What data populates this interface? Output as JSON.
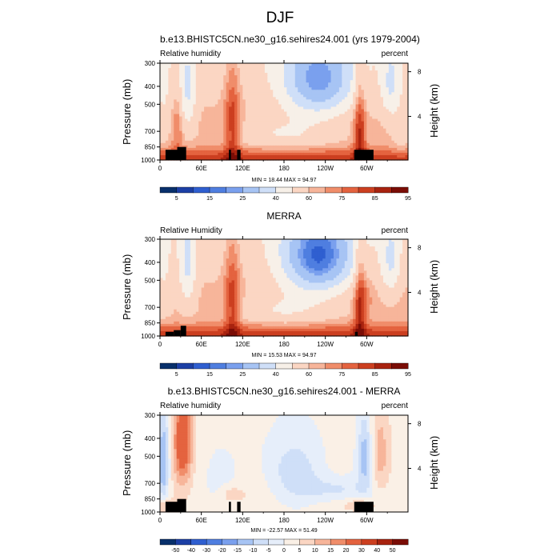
{
  "main_title": "DJF",
  "panels": [
    {
      "title": "b.e13.BHISTC5CN.ne30_g16.sehires24.001 (yrs 1979-2004)",
      "left_label": "Relative humidity",
      "right_label": "percent",
      "minmax": "MIN = 18.44  MAX = 94.97",
      "colorbar_labels": [
        "5",
        "15",
        "25",
        "40",
        "60",
        "75",
        "85",
        "95"
      ],
      "kind": "model"
    },
    {
      "title": "MERRA",
      "left_label": "Relative Humidity",
      "right_label": "percent",
      "minmax": "MIN = 15.53  MAX = 94.97",
      "colorbar_labels": [
        "5",
        "15",
        "25",
        "40",
        "60",
        "75",
        "85",
        "95"
      ],
      "kind": "obs"
    },
    {
      "title": "b.e13.BHISTC5CN.ne30_g16.sehires24.001 - MERRA",
      "left_label": "Relative humidity",
      "right_label": "percent",
      "minmax": "MIN = -22.57  MAX = 51.49",
      "colorbar_labels": [
        "-50",
        "-40",
        "-30",
        "-20",
        "-15",
        "-10",
        "-5",
        "0",
        "5",
        "10",
        "15",
        "20",
        "30",
        "40",
        "50"
      ],
      "kind": "diff"
    }
  ],
  "axes": {
    "ylabel": "Pressure (mb)",
    "ylabel_right": "Height (km)",
    "y_ticks": [
      "300",
      "400",
      "500",
      "700",
      "850",
      "1000"
    ],
    "y_right_ticks": [
      "8",
      "4"
    ],
    "x_ticks": [
      "0",
      "60E",
      "120E",
      "180",
      "120W",
      "60W"
    ]
  },
  "colors": {
    "abs_scale": [
      "#08306b",
      "#1c3fa5",
      "#2f5fd0",
      "#4f7ee0",
      "#7aa0ee",
      "#a7c4f4",
      "#cfdff8",
      "#f7f0e8",
      "#fbd6c3",
      "#f7b59a",
      "#f08d6a",
      "#e4633f",
      "#cc3f20",
      "#a8230f",
      "#7a0d06"
    ],
    "diff_scale": [
      "#08306b",
      "#1c3fa5",
      "#2f5fd0",
      "#4f7ee0",
      "#7aa0ee",
      "#a7c4f4",
      "#cfdff8",
      "#e6eefa",
      "#faf0e6",
      "#fbd6c3",
      "#f7b59a",
      "#f08d6a",
      "#e4633f",
      "#cc3f20",
      "#a8230f",
      "#7a0d06"
    ],
    "terrain": "#000000"
  },
  "chart_data": [
    {
      "type": "heatmap",
      "title": "b.e13.BHISTC5CN.ne30_g16.sehires24.001 (yrs 1979-2004)",
      "ylabel": "Pressure (mb)",
      "ylabel_right": "Height (km)",
      "x_range": [
        0,
        360
      ],
      "y_range_mb": [
        300,
        1000
      ],
      "y_log_scale": true,
      "levels": [
        5,
        10,
        15,
        20,
        25,
        30,
        40,
        50,
        60,
        70,
        75,
        80,
        85,
        90,
        95
      ],
      "min": 18.44,
      "max": 94.97,
      "units": "percent",
      "terrain_blocks_lon": [
        [
          8,
          25,
          880
        ],
        [
          25,
          38,
          850
        ],
        [
          100,
          103,
          880
        ],
        [
          112,
          117,
          880
        ],
        [
          282,
          310,
          880
        ]
      ]
    },
    {
      "type": "heatmap",
      "title": "MERRA",
      "ylabel": "Pressure (mb)",
      "ylabel_right": "Height (km)",
      "x_range": [
        0,
        360
      ],
      "y_range_mb": [
        300,
        1000
      ],
      "y_log_scale": true,
      "levels": [
        5,
        10,
        15,
        20,
        25,
        30,
        40,
        50,
        60,
        70,
        75,
        80,
        85,
        90,
        95
      ],
      "min": 15.53,
      "max": 94.97,
      "units": "percent",
      "terrain_blocks_lon": [
        [
          8,
          20,
          950
        ],
        [
          20,
          30,
          930
        ],
        [
          30,
          38,
          880
        ],
        [
          283,
          287,
          950
        ]
      ]
    },
    {
      "type": "heatmap",
      "title": "b.e13.BHISTC5CN.ne30_g16.sehires24.001 - MERRA",
      "ylabel": "Pressure (mb)",
      "ylabel_right": "Height (km)",
      "x_range": [
        0,
        360
      ],
      "y_range_mb": [
        300,
        1000
      ],
      "y_log_scale": true,
      "levels": [
        -50,
        -40,
        -30,
        -20,
        -15,
        -10,
        -5,
        0,
        5,
        10,
        15,
        20,
        30,
        40,
        50
      ],
      "min": -22.57,
      "max": 51.49,
      "units": "percent",
      "terrain_blocks_lon": [
        [
          8,
          25,
          880
        ],
        [
          25,
          38,
          850
        ],
        [
          100,
          103,
          880
        ],
        [
          112,
          117,
          880
        ],
        [
          282,
          310,
          880
        ]
      ]
    }
  ]
}
